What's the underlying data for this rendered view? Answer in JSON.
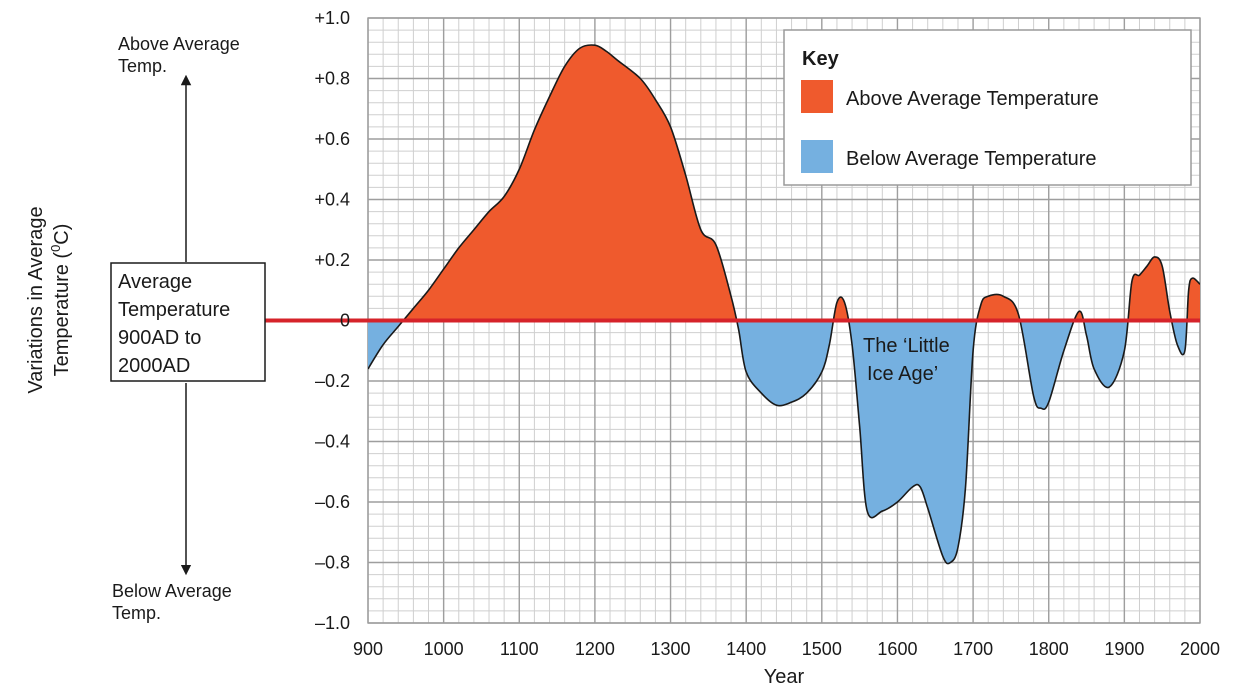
{
  "chart_data": {
    "type": "area",
    "xlabel": "Year",
    "ylabel_line1": "Variations in Average",
    "ylabel_line2": "Temperature (",
    "ylabel_sup": "0",
    "ylabel_end": "C)",
    "xlim": [
      900,
      2000
    ],
    "ylim": [
      -1.0,
      1.0
    ],
    "x_ticks": [
      900,
      1000,
      1100,
      1200,
      1300,
      1400,
      1500,
      1600,
      1700,
      1800,
      1900,
      2000
    ],
    "x_tick_labels": [
      "900",
      "1000",
      "1100",
      "1200",
      "1300",
      "1400",
      "1500",
      "1600",
      "1700",
      "1800",
      "1900",
      "2000"
    ],
    "y_ticks": [
      1.0,
      0.8,
      0.6,
      0.4,
      0.2,
      0,
      -0.2,
      -0.4,
      -0.6,
      -0.8,
      -1.0
    ],
    "y_tick_labels": [
      "+1.0",
      "+0.8",
      "+0.6",
      "+0.4",
      "+0.2",
      "0",
      "–0.2",
      "–0.4",
      "–0.6",
      "–0.8",
      "–1.0"
    ],
    "grid": true,
    "baseline": 0,
    "series": [
      {
        "x": [
          900,
          920,
          940,
          960,
          980,
          1000,
          1020,
          1040,
          1060,
          1080,
          1100,
          1120,
          1140,
          1160,
          1180,
          1200,
          1215,
          1230,
          1260,
          1280,
          1300,
          1320,
          1340,
          1360,
          1380,
          1390,
          1400,
          1420,
          1440,
          1460,
          1480,
          1500,
          1510,
          1520,
          1530,
          1540,
          1550,
          1560,
          1580,
          1600,
          1620,
          1630,
          1640,
          1660,
          1670,
          1680,
          1690,
          1700,
          1710,
          1720,
          1740,
          1760,
          1780,
          1790,
          1800,
          1820,
          1840,
          1850,
          1860,
          1880,
          1900,
          1910,
          1920,
          1930,
          1940,
          1950,
          1960,
          1970,
          1980,
          1985,
          1990,
          2000
        ],
        "values": [
          -0.16,
          -0.08,
          -0.02,
          0.04,
          0.1,
          0.17,
          0.24,
          0.3,
          0.36,
          0.41,
          0.5,
          0.63,
          0.74,
          0.84,
          0.9,
          0.91,
          0.89,
          0.86,
          0.8,
          0.73,
          0.64,
          0.48,
          0.3,
          0.25,
          0.08,
          -0.03,
          -0.17,
          -0.24,
          -0.28,
          -0.27,
          -0.24,
          -0.17,
          -0.08,
          0.06,
          0.06,
          -0.08,
          -0.35,
          -0.63,
          -0.63,
          -0.6,
          -0.55,
          -0.55,
          -0.62,
          -0.78,
          -0.8,
          -0.75,
          -0.55,
          -0.1,
          0.05,
          0.08,
          0.08,
          0.02,
          -0.25,
          -0.29,
          -0.27,
          -0.1,
          0.03,
          -0.05,
          -0.16,
          -0.22,
          -0.1,
          0.13,
          0.15,
          0.18,
          0.21,
          0.18,
          0.03,
          -0.08,
          -0.1,
          0.1,
          0.14,
          0.12
        ]
      }
    ],
    "fill_colors": {
      "above": "#ef5a2d",
      "below": "#75b0e0"
    },
    "baseline_color": "#d6232a",
    "legend": {
      "title": "Key",
      "position": "top-right",
      "entries": [
        {
          "label": "Above Average Temperature",
          "color": "#ef5a2d"
        },
        {
          "label": "Below Average Temperature",
          "color": "#75b0e0"
        }
      ]
    },
    "annotations": {
      "above_line1": "Above Average",
      "above_line2": "Temp.",
      "below_line1": "Below Average",
      "below_line2": "Temp.",
      "box_lines": [
        "Average",
        "Temperature",
        "900AD to",
        "2000AD"
      ],
      "little_ice_age_line1": "The ‘Little",
      "little_ice_age_line2": "Ice Age’"
    }
  }
}
